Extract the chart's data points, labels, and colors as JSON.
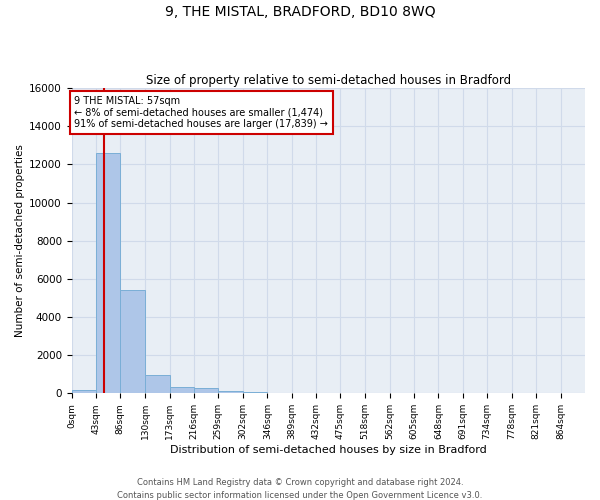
{
  "title": "9, THE MISTAL, BRADFORD, BD10 8WQ",
  "subtitle": "Size of property relative to semi-detached houses in Bradford",
  "xlabel": "Distribution of semi-detached houses by size in Bradford",
  "ylabel": "Number of semi-detached properties",
  "footer_line1": "Contains HM Land Registry data © Crown copyright and database right 2024.",
  "footer_line2": "Contains public sector information licensed under the Open Government Licence v3.0.",
  "property_label": "9 THE MISTAL: 57sqm",
  "pct_smaller": 8,
  "count_smaller": 1474,
  "pct_larger": 91,
  "count_larger": 17839,
  "bin_width": 43,
  "bin_starts": [
    0,
    43,
    86,
    130,
    173,
    216,
    259,
    302,
    346,
    389,
    432,
    475,
    518,
    562,
    605,
    648,
    691,
    734,
    778,
    821
  ],
  "bar_values": [
    200,
    12600,
    5400,
    950,
    320,
    290,
    130,
    90,
    0,
    0,
    0,
    0,
    0,
    0,
    0,
    0,
    0,
    0,
    0,
    0
  ],
  "bar_color": "#aec6e8",
  "bar_edge_color": "#7aaed6",
  "bg_color": "#e8eef5",
  "grid_color": "#d0daea",
  "vline_color": "#cc0000",
  "vline_x": 57,
  "box_color": "#cc0000",
  "ylim": [
    0,
    16000
  ],
  "yticks": [
    0,
    2000,
    4000,
    6000,
    8000,
    10000,
    12000,
    14000,
    16000
  ],
  "tick_labels": [
    "0sqm",
    "43sqm",
    "86sqm",
    "130sqm",
    "173sqm",
    "216sqm",
    "259sqm",
    "302sqm",
    "346sqm",
    "389sqm",
    "432sqm",
    "475sqm",
    "518sqm",
    "562sqm",
    "605sqm",
    "648sqm",
    "691sqm",
    "734sqm",
    "778sqm",
    "821sqm",
    "864sqm"
  ],
  "title_fontsize": 10,
  "subtitle_fontsize": 8.5,
  "xlabel_fontsize": 8,
  "ylabel_fontsize": 7.5,
  "tick_fontsize": 6.5,
  "ytick_fontsize": 7.5,
  "footer_fontsize": 6,
  "annot_fontsize": 7
}
